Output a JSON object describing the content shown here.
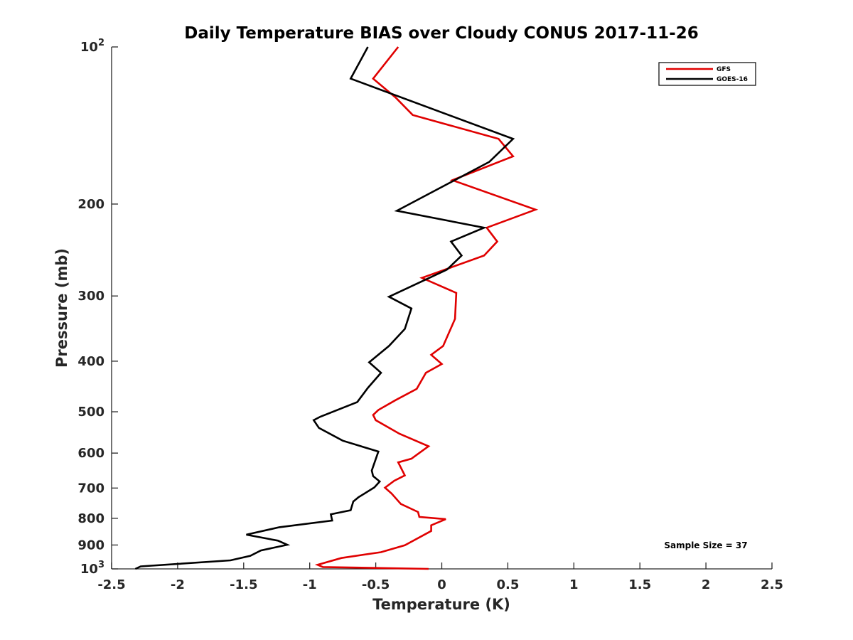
{
  "chart_data": {
    "type": "line",
    "title": "Daily Temperature BIAS over Cloudy CONUS 2017-11-26",
    "xlabel": "Temperature (K)",
    "ylabel": "Pressure (mb)",
    "xlim": [
      -2.5,
      2.5
    ],
    "ylim": [
      100,
      1000
    ],
    "y_scale": "log",
    "y_reversed": true,
    "x_ticks": [
      -2.5,
      -2,
      -1.5,
      -1,
      -0.5,
      0,
      0.5,
      1,
      1.5,
      2,
      2.5
    ],
    "x_tick_labels": [
      "-2.5",
      "-2",
      "-1.5",
      "-1",
      "-0.5",
      "0",
      "0.5",
      "1",
      "1.5",
      "2",
      "2.5"
    ],
    "y_ticks": [
      {
        "value": 100,
        "base": "10",
        "exp": "2"
      },
      {
        "value": 200,
        "label": "200"
      },
      {
        "value": 300,
        "label": "300"
      },
      {
        "value": 400,
        "label": "400"
      },
      {
        "value": 500,
        "label": "500"
      },
      {
        "value": 600,
        "label": "600"
      },
      {
        "value": 700,
        "label": "700"
      },
      {
        "value": 800,
        "label": "800"
      },
      {
        "value": 900,
        "label": "900"
      },
      {
        "value": 1000,
        "base": "10",
        "exp": "3"
      }
    ],
    "legend_position": "top-right",
    "grid": false,
    "annotation": "Sample Size = 37",
    "series": [
      {
        "name": "GFS",
        "color": "#e00000",
        "points": [
          [
            -0.33,
            100
          ],
          [
            -0.52,
            115
          ],
          [
            -0.35,
            125
          ],
          [
            -0.22,
            135
          ],
          [
            0.43,
            150
          ],
          [
            0.54,
            162
          ],
          [
            0.08,
            180
          ],
          [
            0.71,
            205
          ],
          [
            0.34,
            222
          ],
          [
            0.42,
            236
          ],
          [
            0.32,
            251
          ],
          [
            -0.15,
            277
          ],
          [
            0.11,
            296
          ],
          [
            0.1,
            332
          ],
          [
            0.01,
            374
          ],
          [
            -0.08,
            389
          ],
          [
            0.0,
            405
          ],
          [
            -0.12,
            421
          ],
          [
            -0.19,
            452
          ],
          [
            -0.35,
            475
          ],
          [
            -0.48,
            496
          ],
          [
            -0.52,
            507
          ],
          [
            -0.5,
            519
          ],
          [
            -0.32,
            551
          ],
          [
            -0.1,
            582
          ],
          [
            -0.23,
            615
          ],
          [
            -0.33,
            625
          ],
          [
            -0.28,
            662
          ],
          [
            -0.36,
            678
          ],
          [
            -0.43,
            699
          ],
          [
            -0.38,
            717
          ],
          [
            -0.31,
            751
          ],
          [
            -0.18,
            778
          ],
          [
            -0.17,
            795
          ],
          [
            0.03,
            803
          ],
          [
            -0.08,
            825
          ],
          [
            -0.08,
            846
          ],
          [
            -0.28,
            901
          ],
          [
            -0.46,
            929
          ],
          [
            -0.76,
            953
          ],
          [
            -0.94,
            982
          ],
          [
            -0.9,
            992
          ],
          [
            -0.1,
            1000
          ]
        ]
      },
      {
        "name": "GOES-16",
        "color": "#000000",
        "points": [
          [
            -0.56,
            100
          ],
          [
            -0.69,
            115
          ],
          [
            0.54,
            150
          ],
          [
            0.36,
            166
          ],
          [
            -0.34,
            206
          ],
          [
            0.32,
            222
          ],
          [
            0.07,
            236
          ],
          [
            0.15,
            251
          ],
          [
            0.04,
            267
          ],
          [
            -0.4,
            301
          ],
          [
            -0.23,
            317
          ],
          [
            -0.28,
            347
          ],
          [
            -0.4,
            374
          ],
          [
            -0.55,
            402
          ],
          [
            -0.46,
            421
          ],
          [
            -0.56,
            450
          ],
          [
            -0.64,
            479
          ],
          [
            -0.92,
            511
          ],
          [
            -0.97,
            519
          ],
          [
            -0.93,
            537
          ],
          [
            -0.75,
            568
          ],
          [
            -0.48,
            596
          ],
          [
            -0.53,
            648
          ],
          [
            -0.52,
            664
          ],
          [
            -0.47,
            680
          ],
          [
            -0.51,
            698
          ],
          [
            -0.63,
            729
          ],
          [
            -0.67,
            743
          ],
          [
            -0.69,
            772
          ],
          [
            -0.84,
            786
          ],
          [
            -0.83,
            808
          ],
          [
            -1.23,
            832
          ],
          [
            -1.48,
            860
          ],
          [
            -1.24,
            883
          ],
          [
            -1.17,
            899
          ],
          [
            -1.37,
            922
          ],
          [
            -1.45,
            944
          ],
          [
            -1.6,
            963
          ],
          [
            -2.28,
            989
          ],
          [
            -2.32,
            1000
          ]
        ]
      }
    ]
  }
}
